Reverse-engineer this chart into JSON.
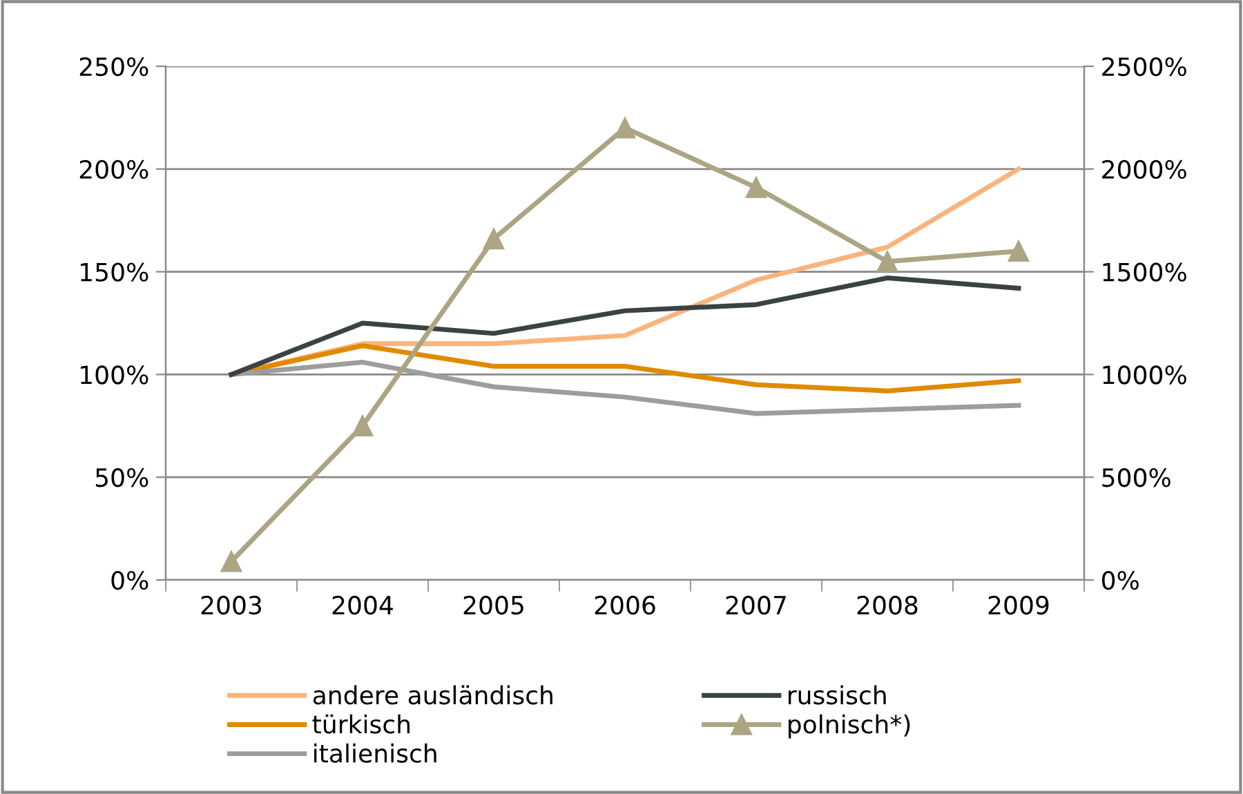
{
  "chart_data": {
    "type": "line",
    "categories": [
      "2003",
      "2004",
      "2005",
      "2006",
      "2007",
      "2008",
      "2009"
    ],
    "series": [
      {
        "name": "andere ausländisch",
        "color": "#f9b47c",
        "values": [
          100,
          115,
          115,
          119,
          146,
          162,
          200
        ]
      },
      {
        "name": "türkisch",
        "color": "#e08a00",
        "values": [
          100,
          114,
          104,
          104,
          95,
          92,
          97
        ]
      },
      {
        "name": "italienisch",
        "color": "#9d9d9d",
        "values": [
          100,
          106,
          94,
          89,
          81,
          83,
          85
        ]
      },
      {
        "name": "russisch",
        "color": "#3a4244",
        "values": [
          100,
          125,
          120,
          131,
          134,
          147,
          142
        ]
      },
      {
        "name": "polnisch*)",
        "color": "#aba583",
        "values": [
          90,
          750,
          1660,
          2200,
          1910,
          1550,
          1600
        ],
        "axis": "y2",
        "marker": "triangle"
      }
    ],
    "ylim": [
      0,
      250
    ],
    "yticks": [
      {
        "value": 0,
        "label": "0%"
      },
      {
        "value": 50,
        "label": "50%"
      },
      {
        "value": 100,
        "label": "100%"
      },
      {
        "value": 150,
        "label": "150%"
      },
      {
        "value": 200,
        "label": "200%"
      },
      {
        "value": 250,
        "label": "250%"
      }
    ],
    "y2lim": [
      0,
      2500
    ],
    "y2ticks": [
      {
        "value": 0,
        "label": "0%"
      },
      {
        "value": 500,
        "label": "500%"
      },
      {
        "value": 1000,
        "label": "1000%"
      },
      {
        "value": 1500,
        "label": "1500%"
      },
      {
        "value": 2000,
        "label": "2000%"
      },
      {
        "value": 2500,
        "label": "2500%"
      }
    ],
    "grid": "y",
    "legend": "bottom"
  }
}
